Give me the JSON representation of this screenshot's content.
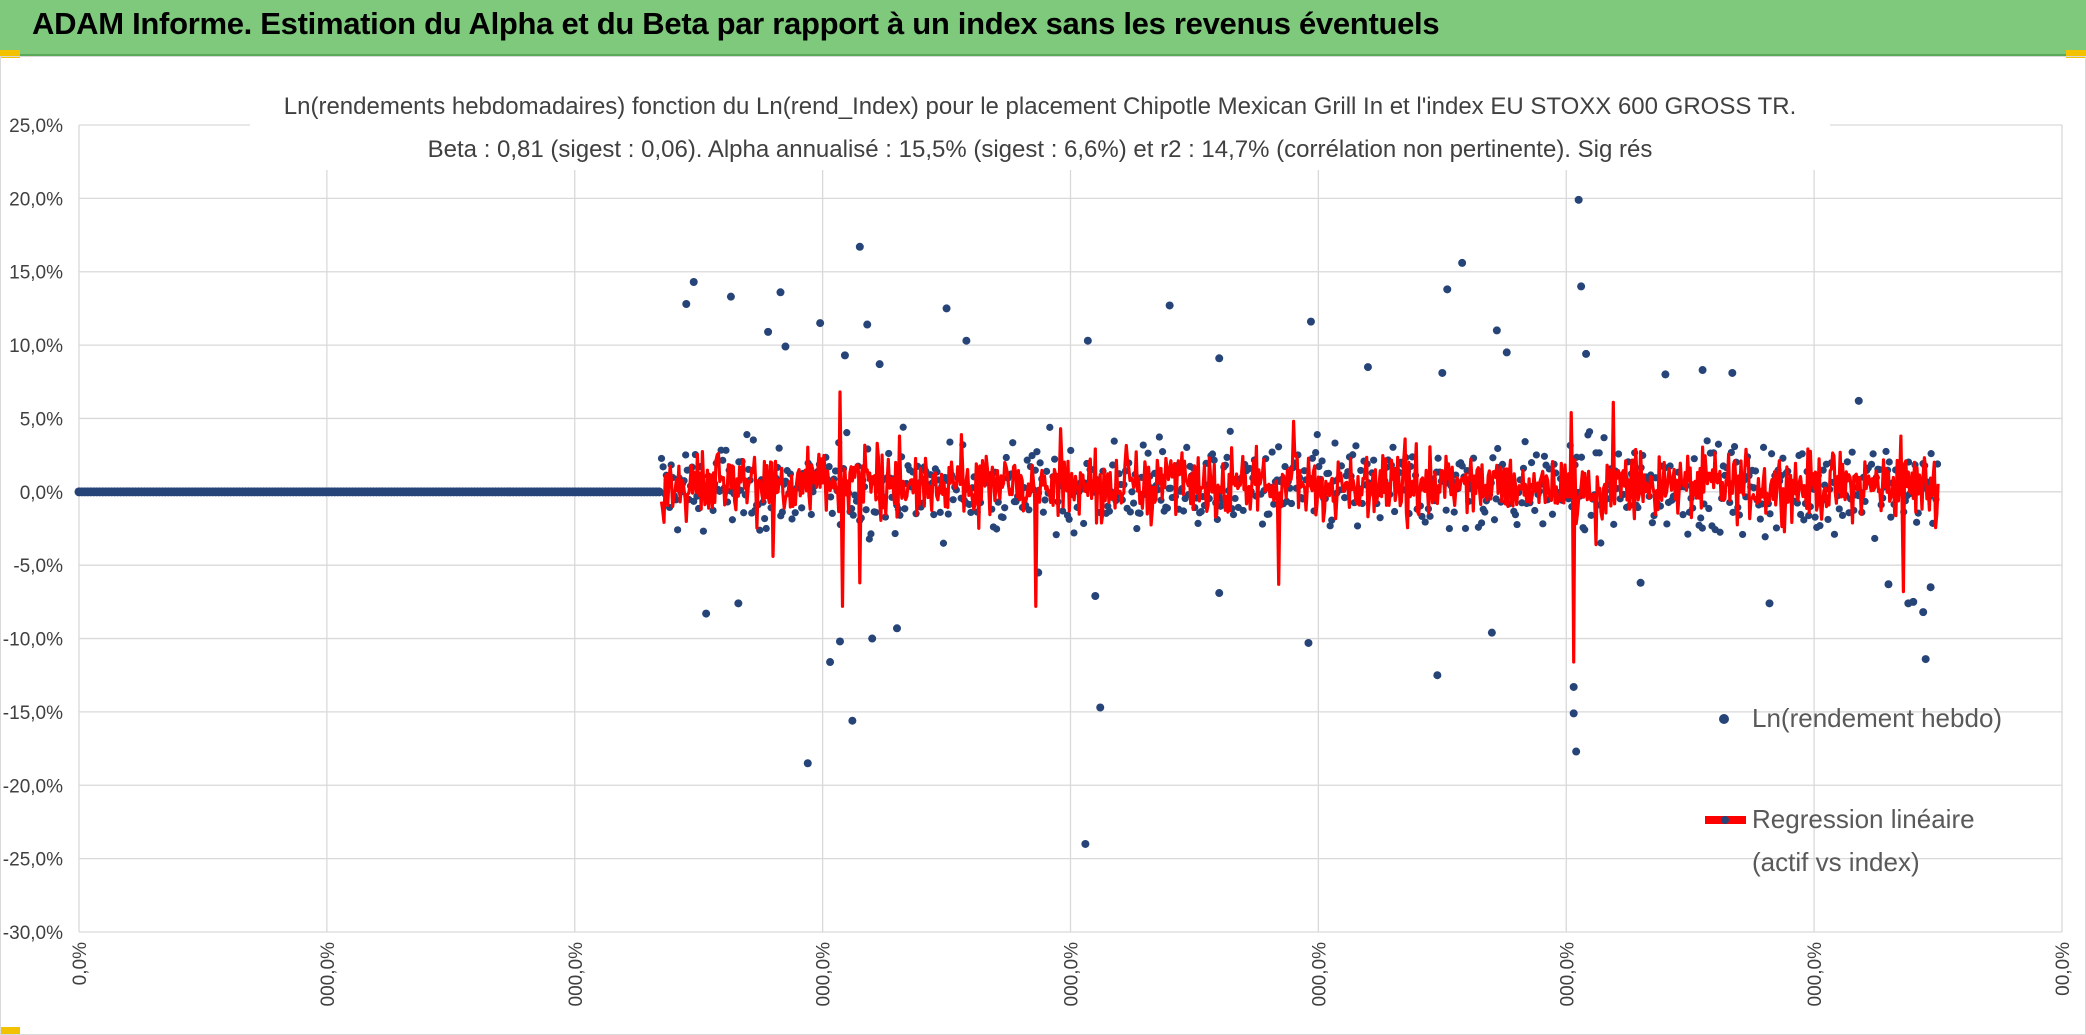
{
  "header": {
    "title": "ADAM Informe. Estimation du Alpha et du Beta par rapport à un index sans les revenus éventuels"
  },
  "colors": {
    "banner": "#7fc97d",
    "points": "#264478",
    "regression": "#ff0000",
    "grid": "#d9d9d9"
  },
  "chart_data": {
    "type": "scatter",
    "title": "Ln(rendements hebdomadaires) fonction du Ln(rend_Index) pour le placement Chipotle Mexican Grill In et l'index EU STOXX 600 GROSS TR.",
    "subtitle": "Beta : 0,81 (sigest : 0,06). Alpha annualisé : 15,5% (sigest : 6,6%) et r2 : 14,7% (corrélation non pertinente). Sig rés",
    "xlabel": "",
    "ylabel": "",
    "ylim": [
      -30,
      25
    ],
    "xlim": [
      0,
      8
    ],
    "y_ticks": [
      "25,0%",
      "20,0%",
      "15,0%",
      "10,0%",
      "5,0%",
      "0,0%",
      "-5,0%",
      "-10,0%",
      "-15,0%",
      "-20,0%",
      "-25,0%",
      "-30,0%"
    ],
    "x_ticks": [
      "0,0%",
      "000,0%",
      "000,0%",
      "000,0%",
      "000,0%",
      "000,0%",
      "000,0%",
      "000,0%",
      "00,0%"
    ],
    "grid": true,
    "legend_position": "right",
    "series": [
      {
        "name": "Ln(rendement hebdo)",
        "kind": "points",
        "note_flat_segment": [
          0,
          2.35
        ],
        "outliers": [
          {
            "x": 2.45,
            "y": 12.8
          },
          {
            "x": 2.48,
            "y": 14.3
          },
          {
            "x": 2.53,
            "y": -8.3
          },
          {
            "x": 2.63,
            "y": 13.3
          },
          {
            "x": 2.66,
            "y": -7.6
          },
          {
            "x": 2.78,
            "y": 10.9
          },
          {
            "x": 2.83,
            "y": 13.6
          },
          {
            "x": 2.85,
            "y": 9.9
          },
          {
            "x": 2.94,
            "y": -18.5
          },
          {
            "x": 2.99,
            "y": 11.5
          },
          {
            "x": 3.03,
            "y": -11.6
          },
          {
            "x": 3.07,
            "y": -10.2
          },
          {
            "x": 3.12,
            "y": -15.6
          },
          {
            "x": 3.09,
            "y": 9.3
          },
          {
            "x": 3.15,
            "y": 16.7
          },
          {
            "x": 3.18,
            "y": 11.4
          },
          {
            "x": 3.2,
            "y": -10.0
          },
          {
            "x": 3.23,
            "y": 8.7
          },
          {
            "x": 3.3,
            "y": -9.3
          },
          {
            "x": 3.5,
            "y": 12.5
          },
          {
            "x": 3.58,
            "y": 10.3
          },
          {
            "x": 3.87,
            "y": -5.5
          },
          {
            "x": 4.07,
            "y": 10.3
          },
          {
            "x": 4.1,
            "y": -7.1
          },
          {
            "x": 4.12,
            "y": -14.7
          },
          {
            "x": 4.06,
            "y": -24.0
          },
          {
            "x": 4.4,
            "y": 12.7
          },
          {
            "x": 4.6,
            "y": -6.9
          },
          {
            "x": 4.6,
            "y": 9.1
          },
          {
            "x": 4.97,
            "y": 11.6
          },
          {
            "x": 4.96,
            "y": -10.3
          },
          {
            "x": 5.2,
            "y": 8.5
          },
          {
            "x": 5.5,
            "y": 8.1
          },
          {
            "x": 5.48,
            "y": -12.5
          },
          {
            "x": 5.52,
            "y": 13.8
          },
          {
            "x": 5.58,
            "y": 15.6
          },
          {
            "x": 5.72,
            "y": 11.0
          },
          {
            "x": 5.76,
            "y": 9.5
          },
          {
            "x": 5.7,
            "y": -9.6
          },
          {
            "x": 6.05,
            "y": 19.9
          },
          {
            "x": 6.06,
            "y": 14.0
          },
          {
            "x": 6.08,
            "y": 9.4
          },
          {
            "x": 6.03,
            "y": -13.3
          },
          {
            "x": 6.03,
            "y": -15.1
          },
          {
            "x": 6.04,
            "y": -17.7
          },
          {
            "x": 6.4,
            "y": 8.0
          },
          {
            "x": 6.55,
            "y": 8.3
          },
          {
            "x": 6.67,
            "y": 8.1
          },
          {
            "x": 6.3,
            "y": -6.2
          },
          {
            "x": 6.82,
            "y": -7.6
          },
          {
            "x": 7.18,
            "y": 6.2
          },
          {
            "x": 7.4,
            "y": -7.5
          },
          {
            "x": 7.38,
            "y": -7.6
          },
          {
            "x": 7.44,
            "y": -8.2
          },
          {
            "x": 7.45,
            "y": -11.4
          },
          {
            "x": 7.47,
            "y": -6.5
          },
          {
            "x": 7.3,
            "y": -6.3
          }
        ]
      },
      {
        "name": "Regression linéaire (actif vs index)",
        "legend_lines": [
          "Regression linéaire",
          "(actif vs index)"
        ],
        "kind": "line",
        "x_range": [
          2.35,
          7.5
        ],
        "spikes": [
          {
            "x": 3.07,
            "y": 6.8
          },
          {
            "x": 3.08,
            "y": -7.8
          },
          {
            "x": 3.15,
            "y": -6.2
          },
          {
            "x": 3.31,
            "y": 3.8
          },
          {
            "x": 3.96,
            "y": 4.3
          },
          {
            "x": 3.86,
            "y": -7.8
          },
          {
            "x": 4.9,
            "y": 4.8
          },
          {
            "x": 4.84,
            "y": -6.3
          },
          {
            "x": 6.02,
            "y": 5.4
          },
          {
            "x": 6.03,
            "y": -11.6
          },
          {
            "x": 6.19,
            "y": 6.1
          },
          {
            "x": 6.12,
            "y": -3.6
          },
          {
            "x": 7.35,
            "y": 3.8
          },
          {
            "x": 7.36,
            "y": -6.8
          },
          {
            "x": 2.8,
            "y": -4.4
          },
          {
            "x": 3.56,
            "y": 3.9
          },
          {
            "x": 5.35,
            "y": 3.6
          }
        ]
      }
    ]
  }
}
